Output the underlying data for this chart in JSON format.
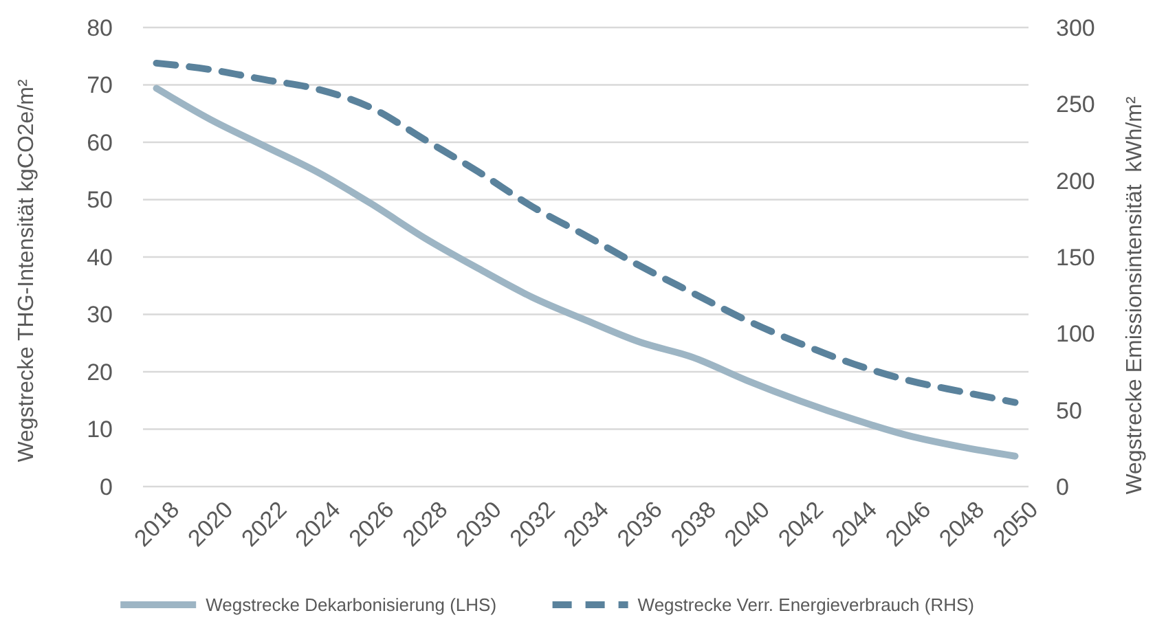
{
  "chart_data": {
    "type": "line",
    "ylabel": "Wegstrecke THG-Intensität kgCO2e/m²",
    "y2label": "Wegstrecke Emissionsintensität  kWh/m²",
    "x": [
      2018,
      2020,
      2022,
      2024,
      2026,
      2028,
      2030,
      2032,
      2034,
      2036,
      2038,
      2040,
      2042,
      2044,
      2046,
      2048,
      2050
    ],
    "xlim": [
      2017.5,
      2050.5
    ],
    "xticks": [
      2018,
      2020,
      2022,
      2024,
      2026,
      2028,
      2030,
      2032,
      2034,
      2036,
      2038,
      2040,
      2042,
      2044,
      2046,
      2048,
      2050
    ],
    "ylim": [
      0,
      80
    ],
    "yticks": [
      0,
      10,
      20,
      30,
      40,
      50,
      60,
      70,
      80
    ],
    "y2lim": [
      0,
      300
    ],
    "y2ticks": [
      0,
      50,
      100,
      150,
      200,
      250,
      300
    ],
    "grid": "y",
    "legend": "bottom",
    "series": [
      {
        "name": "Wegstrecke Dekarbonisierung (LHS)",
        "color": "#9db5c4",
        "line_style": "solid",
        "values": [
          69.4,
          64.0,
          59.4,
          54.8,
          49.3,
          43.3,
          38.0,
          33.0,
          29.0,
          25.2,
          22.5,
          18.5,
          14.9,
          11.7,
          8.9,
          6.9,
          5.3
        ]
      },
      {
        "name": "Wegstrecke Verr. Energieverbrauch (RHS)",
        "color": "#5a829c",
        "line_style": "dashed",
        "axis": "y2",
        "values": [
          276.7,
          272.5,
          266,
          259.7,
          247.6,
          226.7,
          205.7,
          183,
          164,
          144.4,
          126.4,
          108.6,
          93.4,
          80,
          69.5,
          62,
          55
        ]
      }
    ]
  }
}
